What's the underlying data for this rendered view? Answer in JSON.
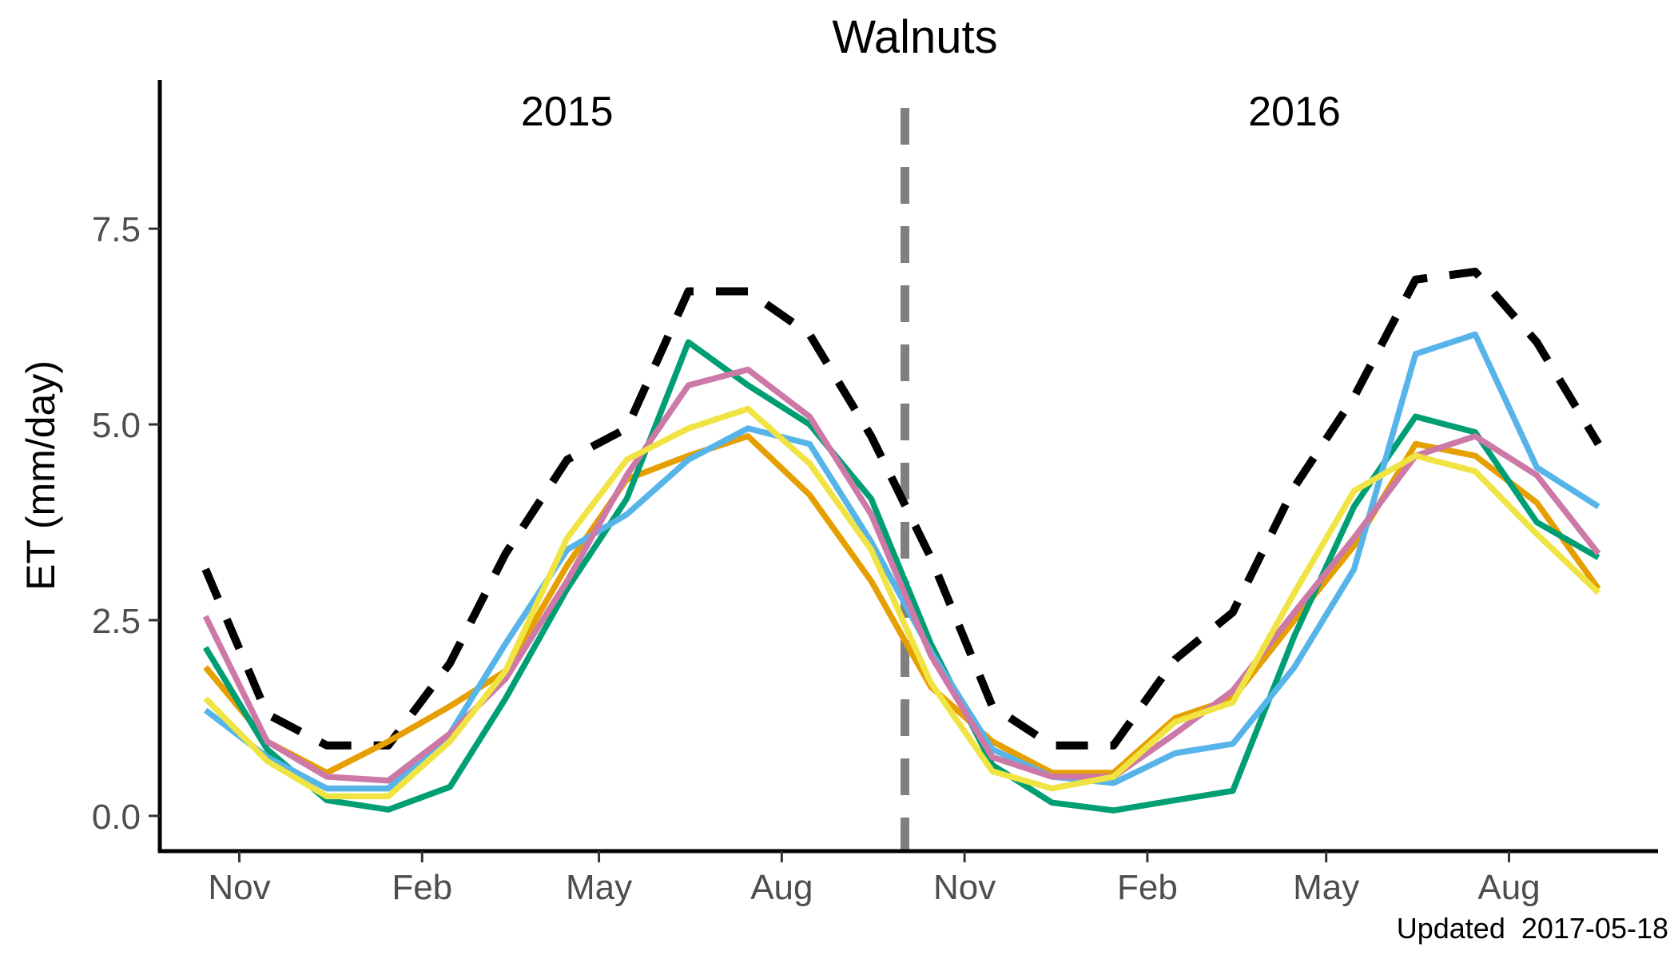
{
  "chart_data": {
    "type": "line",
    "title": "Walnuts",
    "ylabel": "ET (mm/day)",
    "xlabel": "",
    "x_months": [
      "2014-10",
      "2014-11",
      "2014-12",
      "2015-01",
      "2015-02",
      "2015-03",
      "2015-04",
      "2015-05",
      "2015-06",
      "2015-07",
      "2015-08",
      "2015-09",
      "2015-10",
      "2015-11",
      "2015-12",
      "2016-01",
      "2016-02",
      "2016-03",
      "2016-04",
      "2016-05",
      "2016-06",
      "2016-07",
      "2016-08",
      "2016-09"
    ],
    "xlim": [
      "2014-09-22",
      "2016-10-15"
    ],
    "ylim": [
      -0.45,
      9.4
    ],
    "yticks": [
      0,
      2.5,
      5,
      7.5
    ],
    "ytick_labels": [
      "0.0",
      "2.5",
      "5.0",
      "7.5"
    ],
    "xticks": [
      {
        "date": "2014-11-01",
        "label": "Nov"
      },
      {
        "date": "2015-02-01",
        "label": "Feb"
      },
      {
        "date": "2015-05-01",
        "label": "May"
      },
      {
        "date": "2015-08-01",
        "label": "Aug"
      },
      {
        "date": "2015-11-01",
        "label": "Nov"
      },
      {
        "date": "2016-02-01",
        "label": "Feb"
      },
      {
        "date": "2016-05-01",
        "label": "May"
      },
      {
        "date": "2016-08-01",
        "label": "Aug"
      }
    ],
    "divider_date": "2015-10-02",
    "divider_color": "#808080",
    "annotations": [
      {
        "text": "2015",
        "date": "2015-04-15",
        "y": 9.0
      },
      {
        "text": "2016",
        "date": "2016-04-15",
        "y": 9.0
      }
    ],
    "grid": false,
    "legend": "none",
    "series": [
      {
        "color": "#000000",
        "dashed": true,
        "values": [
          3.15,
          1.3,
          0.9,
          0.9,
          1.95,
          3.35,
          4.55,
          4.95,
          6.7,
          6.7,
          6.15,
          4.85,
          3.3,
          1.4,
          0.9,
          0.9,
          2.0,
          2.6,
          4.2,
          5.35,
          6.85,
          6.95,
          6.05,
          4.75
        ]
      },
      {
        "color": "#E69F00",
        "dashed": false,
        "values": [
          1.9,
          0.95,
          0.55,
          0.95,
          1.4,
          1.85,
          3.2,
          4.3,
          4.6,
          4.85,
          4.1,
          3.0,
          1.65,
          0.95,
          0.55,
          0.55,
          1.25,
          1.5,
          2.5,
          3.45,
          4.75,
          4.6,
          4.0,
          2.9
        ]
      },
      {
        "color": "#009E73",
        "dashed": false,
        "values": [
          2.15,
          0.85,
          0.2,
          0.08,
          0.37,
          1.5,
          2.9,
          4.05,
          6.05,
          5.5,
          5.0,
          4.05,
          2.2,
          0.65,
          0.17,
          0.07,
          0.2,
          0.32,
          2.3,
          3.95,
          5.1,
          4.9,
          3.75,
          3.3
        ]
      },
      {
        "color": "#56B4E9",
        "dashed": false,
        "values": [
          1.35,
          0.75,
          0.35,
          0.35,
          1.05,
          2.2,
          3.4,
          3.85,
          4.55,
          4.95,
          4.75,
          3.5,
          2.1,
          0.85,
          0.5,
          0.42,
          0.8,
          0.92,
          1.9,
          3.15,
          5.9,
          6.15,
          4.45,
          3.95
        ]
      },
      {
        "color": "#CC79A7",
        "dashed": false,
        "values": [
          2.55,
          0.95,
          0.5,
          0.45,
          1.05,
          1.75,
          3.0,
          4.35,
          5.5,
          5.7,
          5.1,
          3.85,
          2.05,
          0.75,
          0.5,
          0.5,
          1.05,
          1.6,
          2.6,
          3.55,
          4.6,
          4.85,
          4.35,
          3.35
        ]
      },
      {
        "color": "#F0E442",
        "dashed": false,
        "values": [
          1.5,
          0.7,
          0.25,
          0.25,
          0.95,
          1.85,
          3.55,
          4.55,
          4.95,
          5.2,
          4.5,
          3.4,
          1.7,
          0.57,
          0.35,
          0.5,
          1.2,
          1.45,
          2.85,
          4.15,
          4.6,
          4.4,
          3.6,
          2.85
        ]
      }
    ]
  },
  "caption": "Updated  2017-05-18"
}
